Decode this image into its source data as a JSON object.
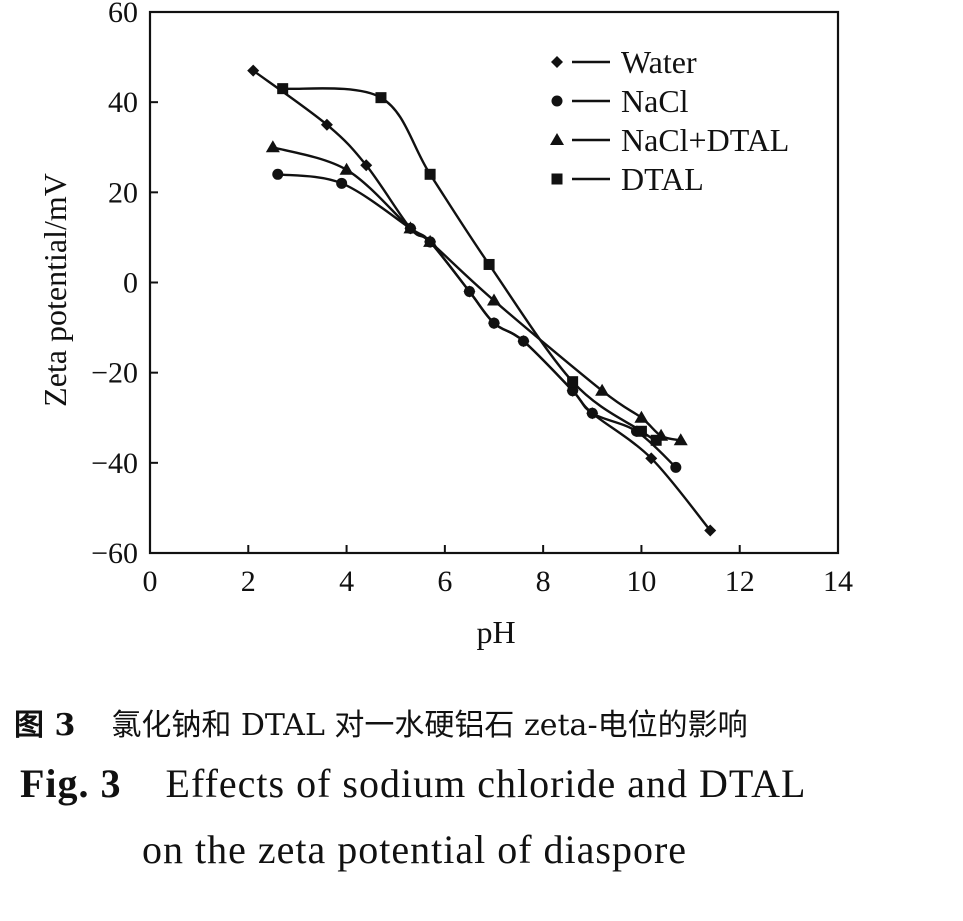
{
  "chart_data": {
    "type": "line",
    "xlabel": "pH",
    "ylabel": "Zeta potential/mV",
    "xlim": [
      0,
      14
    ],
    "ylim": [
      -60,
      60
    ],
    "xticks": [
      0,
      2,
      4,
      6,
      8,
      10,
      12,
      14
    ],
    "yticks": [
      60,
      40,
      20,
      0,
      -20,
      -40,
      -60
    ],
    "grid": false,
    "legend_position": "top-right",
    "series": [
      {
        "name": "Water",
        "marker": "diamond",
        "x": [
          2.1,
          3.6,
          4.4,
          5.3,
          5.7,
          6.5,
          7.0,
          7.6,
          8.6,
          9.0,
          10.2,
          11.4
        ],
        "y": [
          47,
          35,
          26,
          12,
          9,
          -2,
          -9,
          -13,
          -24,
          -29,
          -39,
          -55
        ]
      },
      {
        "name": "NaCl",
        "marker": "circle",
        "x": [
          2.6,
          3.9,
          5.3,
          5.7,
          6.5,
          7.0,
          7.6,
          8.6,
          9.0,
          9.9,
          10.7
        ],
        "y": [
          24,
          22,
          12,
          9,
          -2,
          -9,
          -13,
          -24,
          -29,
          -33,
          -41
        ]
      },
      {
        "name": "NaCl+DTAL",
        "marker": "triangle",
        "x": [
          2.5,
          4.0,
          5.3,
          5.7,
          7.0,
          9.2,
          10.0,
          10.4,
          10.8
        ],
        "y": [
          30,
          25,
          12,
          9,
          -4,
          -24,
          -30,
          -34,
          -35
        ]
      },
      {
        "name": "DTAL",
        "marker": "square",
        "x": [
          2.7,
          4.7,
          5.7,
          6.9,
          8.6,
          10.0,
          10.3
        ],
        "y": [
          43,
          41,
          24,
          4,
          -22,
          -33,
          -35
        ]
      }
    ]
  },
  "caption": {
    "cn_number": "图 3",
    "cn_text": "氯化钠和 DTAL 对一水硬铝石 zeta-电位的影响",
    "en_number": "Fig. 3",
    "en_line1": "Effects of sodium chloride and DTAL",
    "en_line2": "on the zeta potential of diaspore"
  }
}
